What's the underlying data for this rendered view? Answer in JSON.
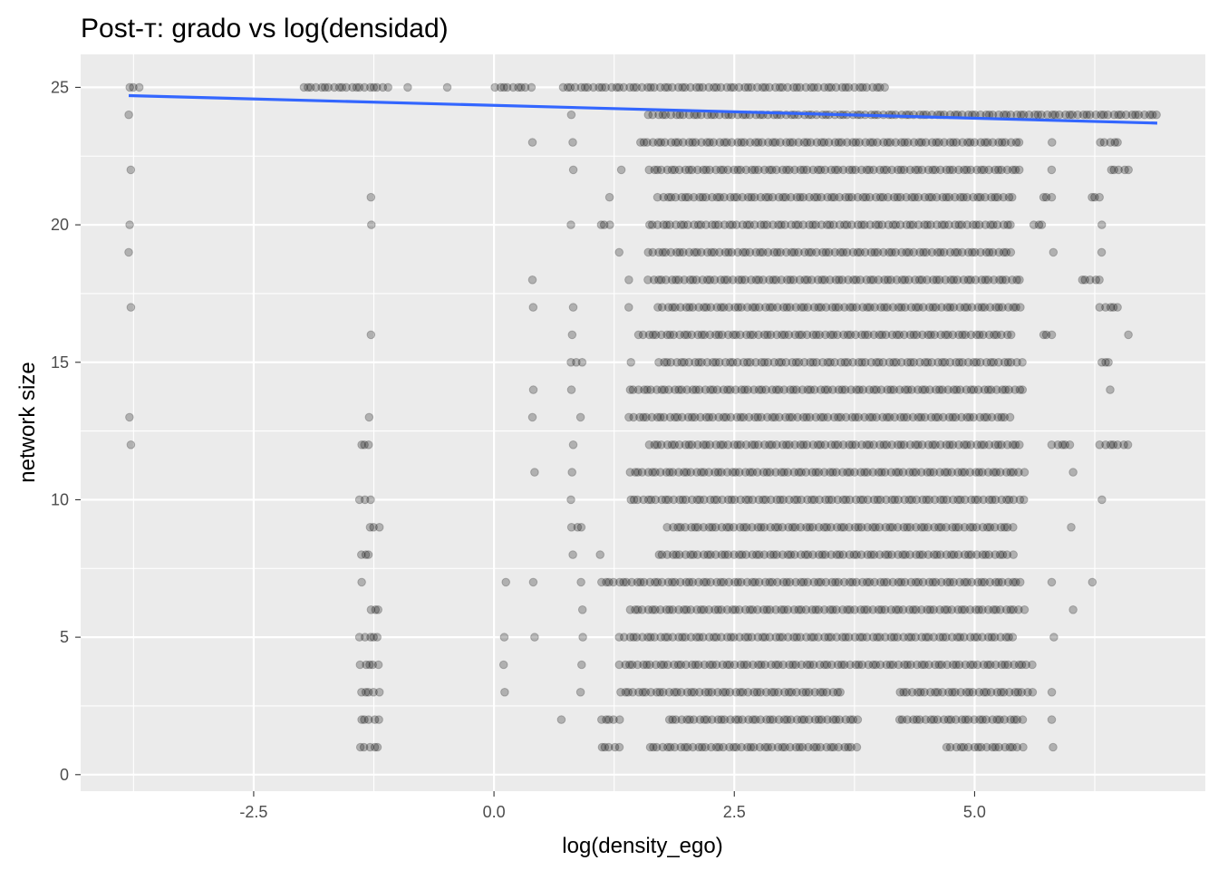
{
  "chart_data": {
    "type": "scatter",
    "title": "Post-т: grado vs log(densidad)",
    "xlabel": "log(density_ego)",
    "ylabel": "network size",
    "xlim": [
      -4.3,
      7.4
    ],
    "ylim": [
      -0.6,
      26.2
    ],
    "x_ticks": [
      -2.5,
      0.0,
      2.5,
      5.0
    ],
    "x_tick_labels": [
      "-2.5",
      "0.0",
      "2.5",
      "5.0"
    ],
    "y_ticks": [
      0,
      5,
      10,
      15,
      20,
      25
    ],
    "y_tick_labels": [
      "0",
      "5",
      "10",
      "15",
      "20",
      "25"
    ],
    "grid": true,
    "point_color": "#000000",
    "point_opacity": 0.25,
    "panel_background": "#ebebeb",
    "grid_color": "#ffffff",
    "trend_color": "#3366ff",
    "trend_line": {
      "x": [
        -3.8,
        6.9
      ],
      "y": [
        24.7,
        23.7
      ]
    },
    "rows": [
      {
        "y": 25,
        "clusters": [
          [
            -3.8,
            -3.7
          ],
          [
            -2.0,
            -1.1
          ],
          [
            -0.9,
            -0.9
          ],
          [
            -0.5,
            -0.5
          ],
          [
            0.0,
            0.4
          ],
          [
            0.7,
            4.1
          ]
        ]
      },
      {
        "y": 24,
        "clusters": [
          [
            -3.8,
            -3.8
          ],
          [
            0.8,
            0.8
          ],
          [
            1.6,
            6.9
          ]
        ]
      },
      {
        "y": 23,
        "clusters": [
          [
            0.4,
            0.4
          ],
          [
            0.8,
            0.8
          ],
          [
            1.5,
            5.5
          ],
          [
            5.8,
            5.8
          ],
          [
            6.3,
            6.5
          ]
        ]
      },
      {
        "y": 22,
        "clusters": [
          [
            -3.8,
            -3.8
          ],
          [
            0.8,
            0.8
          ],
          [
            1.3,
            1.3
          ],
          [
            1.6,
            5.5
          ],
          [
            5.8,
            5.8
          ],
          [
            6.4,
            6.6
          ]
        ]
      },
      {
        "y": 21,
        "clusters": [
          [
            -1.3,
            -1.3
          ],
          [
            1.2,
            1.2
          ],
          [
            1.7,
            5.4
          ],
          [
            5.7,
            5.8
          ],
          [
            6.2,
            6.3
          ]
        ]
      },
      {
        "y": 20,
        "clusters": [
          [
            -3.8,
            -3.8
          ],
          [
            -1.3,
            -1.3
          ],
          [
            0.8,
            0.8
          ],
          [
            1.1,
            1.2
          ],
          [
            1.6,
            5.4
          ],
          [
            5.6,
            5.7
          ],
          [
            6.3,
            6.3
          ]
        ]
      },
      {
        "y": 19,
        "clusters": [
          [
            -3.8,
            -3.8
          ],
          [
            1.3,
            1.3
          ],
          [
            1.6,
            5.4
          ],
          [
            5.8,
            5.8
          ],
          [
            6.3,
            6.3
          ]
        ]
      },
      {
        "y": 18,
        "clusters": [
          [
            0.4,
            0.4
          ],
          [
            1.4,
            1.4
          ],
          [
            1.6,
            5.5
          ],
          [
            6.1,
            6.3
          ]
        ]
      },
      {
        "y": 17,
        "clusters": [
          [
            -3.8,
            -3.8
          ],
          [
            0.4,
            0.4
          ],
          [
            0.8,
            0.8
          ],
          [
            1.4,
            1.4
          ],
          [
            1.7,
            5.5
          ],
          [
            6.3,
            6.5
          ]
        ]
      },
      {
        "y": 16,
        "clusters": [
          [
            -1.3,
            -1.3
          ],
          [
            0.8,
            0.8
          ],
          [
            1.5,
            5.4
          ],
          [
            5.7,
            5.8
          ],
          [
            6.6,
            6.6
          ]
        ]
      },
      {
        "y": 15,
        "clusters": [
          [
            0.8,
            0.9
          ],
          [
            1.4,
            1.4
          ],
          [
            1.7,
            5.5
          ],
          [
            6.3,
            6.4
          ]
        ]
      },
      {
        "y": 14,
        "clusters": [
          [
            0.4,
            0.4
          ],
          [
            0.8,
            0.8
          ],
          [
            1.4,
            5.5
          ],
          [
            6.4,
            6.4
          ]
        ]
      },
      {
        "y": 13,
        "clusters": [
          [
            -3.8,
            -3.8
          ],
          [
            -1.3,
            -1.3
          ],
          [
            0.4,
            0.4
          ],
          [
            0.9,
            0.9
          ],
          [
            1.4,
            5.4
          ]
        ]
      },
      {
        "y": 12,
        "clusters": [
          [
            -3.8,
            -3.8
          ],
          [
            -1.4,
            -1.3
          ],
          [
            0.8,
            0.8
          ],
          [
            1.6,
            5.5
          ],
          [
            5.8,
            6.0
          ],
          [
            6.3,
            6.6
          ]
        ]
      },
      {
        "y": 11,
        "clusters": [
          [
            0.4,
            0.4
          ],
          [
            0.8,
            0.8
          ],
          [
            1.4,
            5.5
          ],
          [
            6.0,
            6.0
          ]
        ]
      },
      {
        "y": 10,
        "clusters": [
          [
            -1.4,
            -1.3
          ],
          [
            0.8,
            0.8
          ],
          [
            1.4,
            5.5
          ],
          [
            6.3,
            6.3
          ]
        ]
      },
      {
        "y": 9,
        "clusters": [
          [
            -1.3,
            -1.2
          ],
          [
            0.8,
            0.9
          ],
          [
            1.8,
            5.4
          ],
          [
            6.0,
            6.0
          ]
        ]
      },
      {
        "y": 8,
        "clusters": [
          [
            -1.4,
            -1.3
          ],
          [
            0.8,
            0.8
          ],
          [
            1.1,
            1.1
          ],
          [
            1.7,
            5.4
          ]
        ]
      },
      {
        "y": 7,
        "clusters": [
          [
            -1.4,
            -1.4
          ],
          [
            0.1,
            0.1
          ],
          [
            0.4,
            0.4
          ],
          [
            0.9,
            0.9
          ],
          [
            1.1,
            5.5
          ],
          [
            5.8,
            5.8
          ],
          [
            6.2,
            6.2
          ]
        ]
      },
      {
        "y": 6,
        "clusters": [
          [
            -1.3,
            -1.2
          ],
          [
            0.9,
            0.9
          ],
          [
            1.4,
            5.5
          ],
          [
            6.0,
            6.0
          ]
        ]
      },
      {
        "y": 5,
        "clusters": [
          [
            -1.4,
            -1.2
          ],
          [
            0.1,
            0.1
          ],
          [
            0.4,
            0.4
          ],
          [
            0.9,
            0.9
          ],
          [
            1.3,
            5.4
          ],
          [
            5.8,
            5.8
          ]
        ]
      },
      {
        "y": 4,
        "clusters": [
          [
            -1.4,
            -1.2
          ],
          [
            0.1,
            0.1
          ],
          [
            0.9,
            0.9
          ],
          [
            1.3,
            5.6
          ]
        ]
      },
      {
        "y": 3,
        "clusters": [
          [
            -1.4,
            -1.2
          ],
          [
            0.1,
            0.1
          ],
          [
            0.9,
            0.9
          ],
          [
            1.3,
            3.6
          ],
          [
            4.2,
            5.6
          ],
          [
            5.8,
            5.8
          ]
        ]
      },
      {
        "y": 2,
        "clusters": [
          [
            -1.4,
            -1.2
          ],
          [
            0.7,
            0.7
          ],
          [
            1.1,
            1.3
          ],
          [
            1.8,
            3.8
          ],
          [
            4.2,
            5.5
          ],
          [
            5.8,
            5.8
          ]
        ]
      },
      {
        "y": 1,
        "clusters": [
          [
            -1.4,
            -1.2
          ],
          [
            1.1,
            1.3
          ],
          [
            1.6,
            3.8
          ],
          [
            4.7,
            5.5
          ],
          [
            5.8,
            5.8
          ]
        ]
      }
    ]
  }
}
